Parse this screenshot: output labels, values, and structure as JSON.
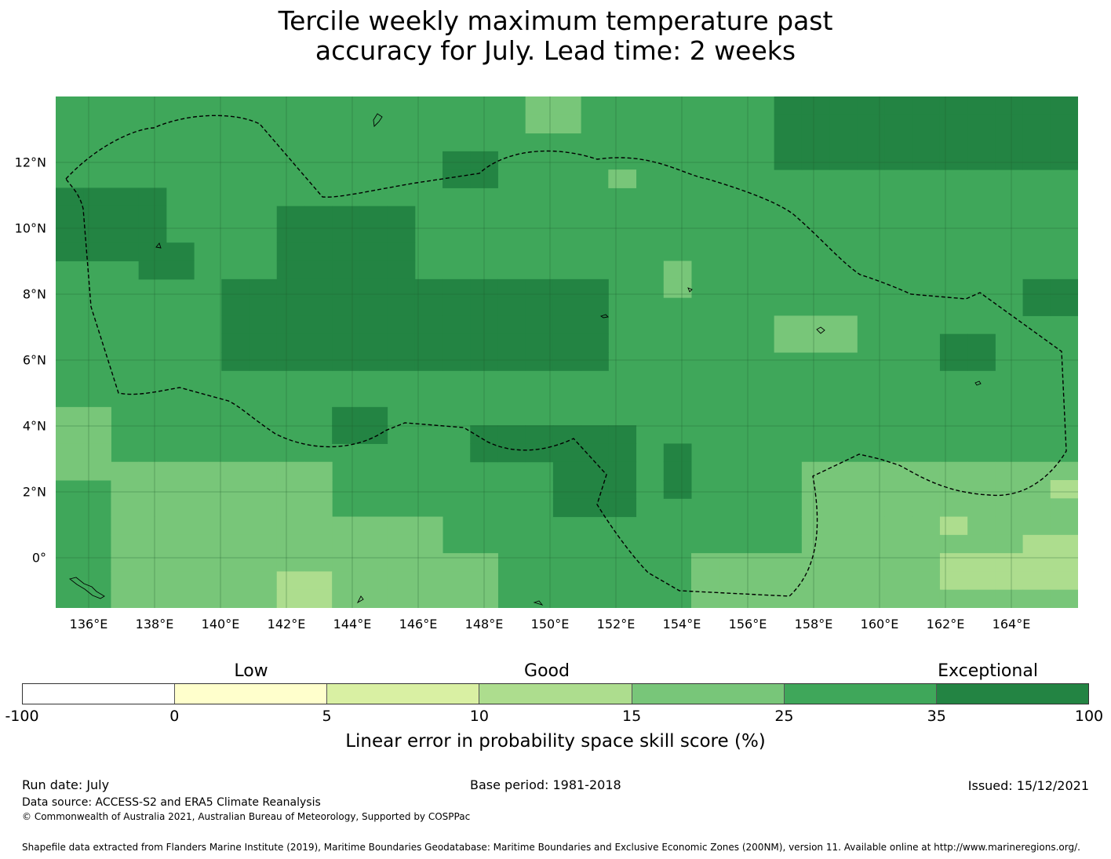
{
  "title_line1": "Tercile weekly maximum temperature past",
  "title_line2": "accuracy for July. Lead time: 2 weeks",
  "x_ticks": [
    "136°E",
    "138°E",
    "140°E",
    "142°E",
    "144°E",
    "146°E",
    "148°E",
    "150°E",
    "152°E",
    "154°E",
    "156°E",
    "158°E",
    "160°E",
    "162°E",
    "164°E"
  ],
  "y_ticks": [
    "12°N",
    "10°N",
    "8°N",
    "6°N",
    "4°N",
    "2°N",
    "0°"
  ],
  "legend": {
    "categories": [
      "Low",
      "Good",
      "Exceptional"
    ],
    "ticks": [
      "-100",
      "0",
      "5",
      "10",
      "15",
      "25",
      "35",
      "100"
    ],
    "colors": [
      "#ffffff",
      "#ffffcc",
      "#d9f0a3",
      "#addd8e",
      "#78c679",
      "#3fa75a",
      "#238443"
    ],
    "label": "Linear error in probability space skill score (%)"
  },
  "footer": {
    "run_date": "Run date: July",
    "base_period": "Base period: 1981-2018",
    "issued": "Issued: 15/12/2021",
    "data_source": "Data source: ACCESS-S2 and ERA5 Climate Reanalysis",
    "copyright": "© Commonwealth of Australia 2021, Australian Bureau of Meteorology, Supported by COSPPac",
    "shapefile": "Shapefile data extracted from Flanders Marine Institute (2019), Maritime Boundaries Geodatabase: Maritime Boundaries and Exclusive Economic Zones (200NM), version 11. Available online at http://www.marineregions.org/."
  }
}
